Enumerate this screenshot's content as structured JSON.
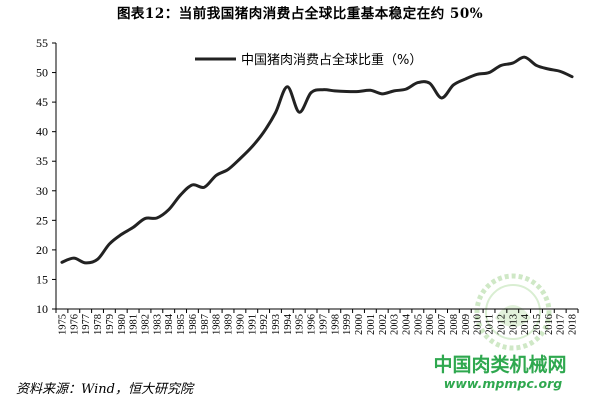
{
  "title": "图表12：当前我国猪肉消费占全球比重基本稳定在约 50%",
  "source": "资料来源：Wind，恒大研究院",
  "watermark": {
    "name": "中国肉类机械网",
    "url": "www.mpmpc.org",
    "color": "#2fa84f"
  },
  "chart_data": {
    "type": "line",
    "title": "图表12：当前我国猪肉消费占全球比重基本稳定在约 50%",
    "xlabel": "",
    "ylabel": "",
    "ylim": [
      10,
      55
    ],
    "yticks": [
      10,
      15,
      20,
      25,
      30,
      35,
      40,
      45,
      50,
      55
    ],
    "grid": false,
    "legend_position": "top-center",
    "x": [
      "1975",
      "1976",
      "1977",
      "1978",
      "1979",
      "1980",
      "1981",
      "1982",
      "1983",
      "1984",
      "1985",
      "1986",
      "1987",
      "1988",
      "1989",
      "1990",
      "1991",
      "1992",
      "1993",
      "1994",
      "1995",
      "1996",
      "1997",
      "1998",
      "1999",
      "2000",
      "2001",
      "2002",
      "2003",
      "2004",
      "2005",
      "2006",
      "2007",
      "2008",
      "2009",
      "2010",
      "2011",
      "2012",
      "2013",
      "2014",
      "2015",
      "2016",
      "2017",
      "2018"
    ],
    "series": [
      {
        "name": "中国猪肉消费占全球比重（%）",
        "color": "#222222",
        "values": [
          17.9,
          18.6,
          17.8,
          18.4,
          21.0,
          22.6,
          23.8,
          25.3,
          25.4,
          26.8,
          29.3,
          31.0,
          30.6,
          32.6,
          33.6,
          35.4,
          37.4,
          39.9,
          43.2,
          47.6,
          43.3,
          46.6,
          47.1,
          46.9,
          46.8,
          46.8,
          47.0,
          46.4,
          46.9,
          47.2,
          48.3,
          48.2,
          45.7,
          47.9,
          48.9,
          49.7,
          50.0,
          51.2,
          51.6,
          52.6,
          51.2,
          50.6,
          50.2,
          49.3
        ]
      }
    ]
  }
}
